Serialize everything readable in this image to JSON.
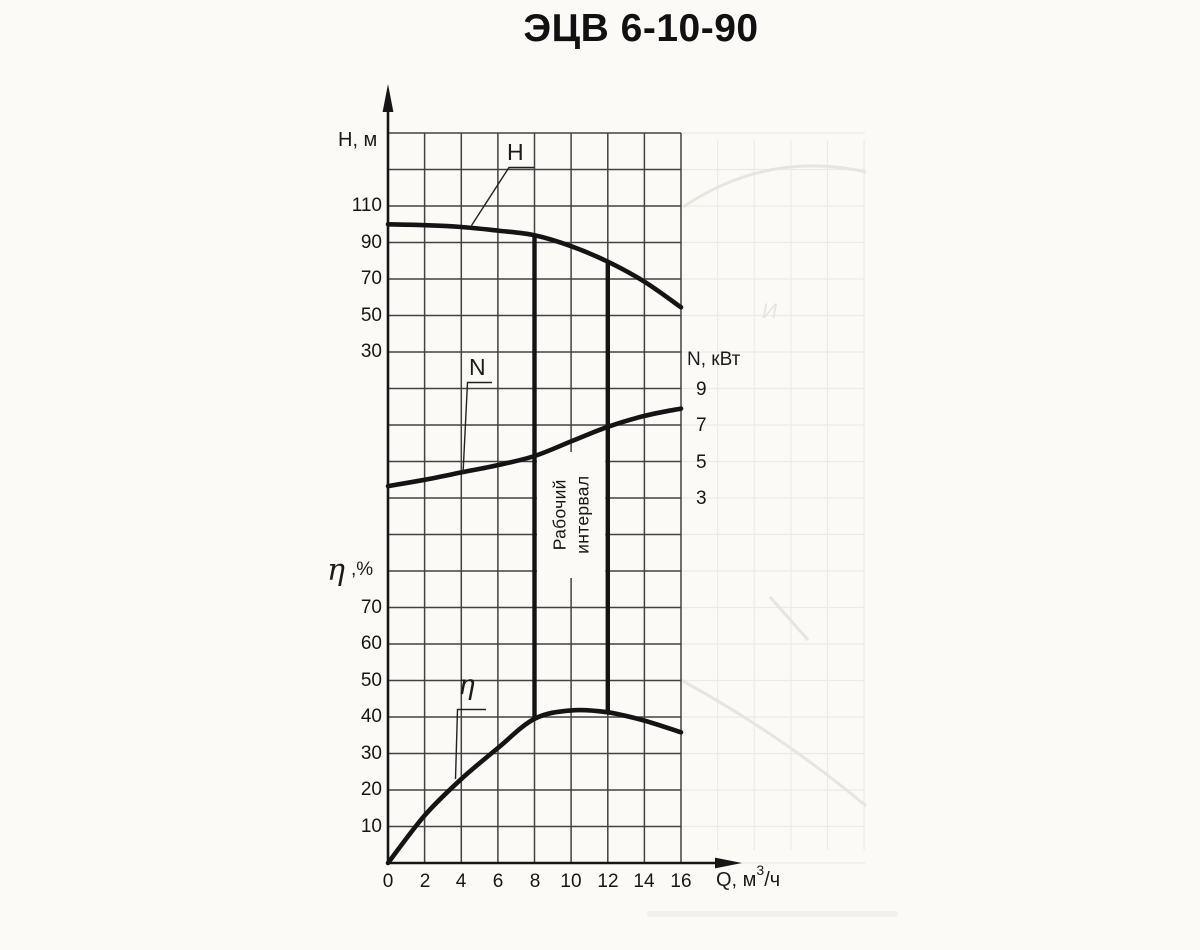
{
  "title": "ЭЦВ 6-10-90",
  "colors": {
    "ink": "#1a1a1a",
    "paper": "#fbfaf7"
  },
  "chart_data": {
    "type": "line",
    "xlabel": "Q, м³/ч",
    "x_axis_label": {
      "prefix": "Q, м",
      "sup": "3",
      "suffix": "/ч"
    },
    "x": [
      0,
      2,
      4,
      6,
      8,
      10,
      12,
      14,
      16
    ],
    "x_ticks": [
      "0",
      "2",
      "4",
      "6",
      "8",
      "10",
      "12",
      "14",
      "16"
    ],
    "grid": {
      "visible": true,
      "x_cell": 2,
      "row_count": 20,
      "col_count": 8
    },
    "series": [
      {
        "name": "H",
        "curve_label": "H",
        "axis_label": "H, м",
        "units": "м",
        "ticks": [
          110,
          90,
          70,
          50,
          30
        ],
        "values": [
          100,
          99.5,
          98.5,
          96.5,
          94,
          88,
          79.5,
          68.5,
          54.5
        ]
      },
      {
        "name": "N",
        "curve_label": "N",
        "axis_label": "N, кВт",
        "units": "кВт",
        "ticks": [
          9,
          7,
          5,
          3
        ],
        "values": [
          3.65,
          4.0,
          4.4,
          4.8,
          5.3,
          6.1,
          6.9,
          7.5,
          7.9
        ]
      },
      {
        "name": "η",
        "curve_label": "η",
        "axis_label": {
          "symbol": "η",
          "suffix": ",%"
        },
        "units": "%",
        "ticks": [
          70,
          60,
          50,
          40,
          30,
          20,
          10
        ],
        "values": [
          0,
          13,
          23,
          31.5,
          39.5,
          41.8,
          41.3,
          39,
          35.8
        ]
      }
    ],
    "working_interval": {
      "q_from": 8,
      "q_to": 12,
      "label_lines": [
        "Рабочий",
        "интервал"
      ]
    },
    "legend": "none"
  },
  "artifacts": {
    "bleed_letter": "И"
  }
}
